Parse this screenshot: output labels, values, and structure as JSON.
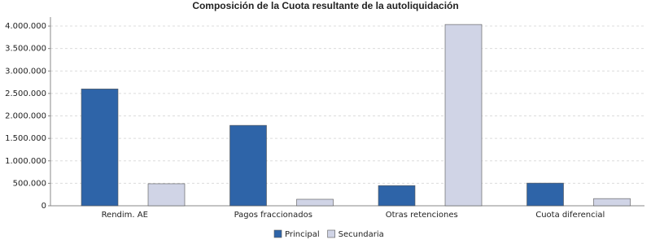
{
  "chart_data": {
    "type": "bar",
    "title": "Composición de la Cuota resultante de la autoliquidación",
    "categories": [
      "Rendim. AE",
      "Pagos fraccionados",
      "Otras retenciones",
      "Cuota diferencial"
    ],
    "series": [
      {
        "name": "Principal",
        "color": "#2e64a8",
        "values": [
          2600000,
          1790000,
          450000,
          505000
        ]
      },
      {
        "name": "Secundaria",
        "color": "#d0d4e6",
        "values": [
          490000,
          145000,
          4035000,
          160000
        ]
      }
    ],
    "ylim": [
      0,
      4200000
    ],
    "yticks": [
      {
        "value": 0,
        "label": "0"
      },
      {
        "value": 500000,
        "label": "500.000"
      },
      {
        "value": 1000000,
        "label": "1.000.000"
      },
      {
        "value": 1500000,
        "label": "1.500.000"
      },
      {
        "value": 2000000,
        "label": "2.000.000"
      },
      {
        "value": 2500000,
        "label": "2.500.000"
      },
      {
        "value": 3000000,
        "label": "3.000.000"
      },
      {
        "value": 3500000,
        "label": "3.500.000"
      },
      {
        "value": 4000000,
        "label": "4.000.000"
      }
    ],
    "grid": true,
    "legend": "bottom"
  }
}
